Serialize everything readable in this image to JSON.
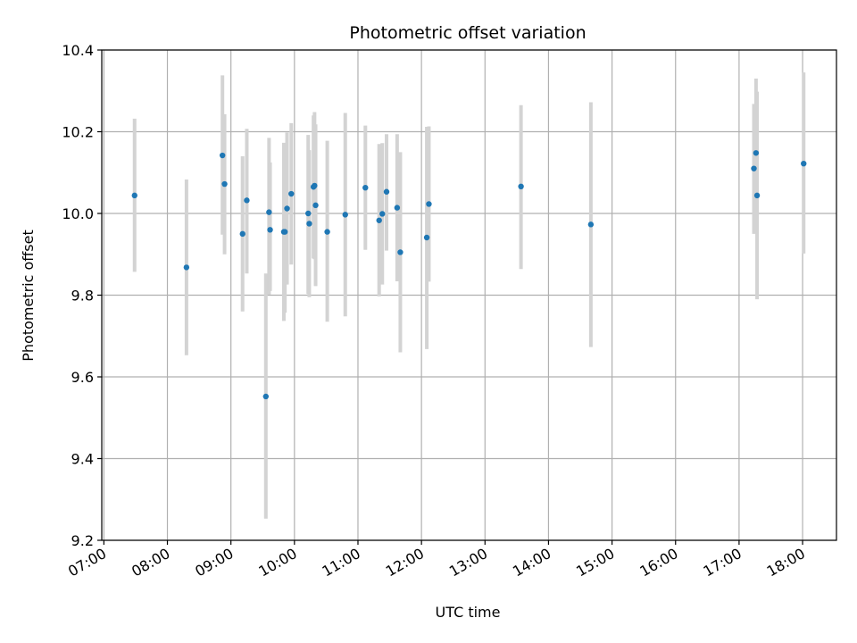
{
  "chart_data": {
    "type": "scatter",
    "title": "Photometric offset variation",
    "xlabel": "UTC time",
    "ylabel": "Photometric offset",
    "x_tick_labels": [
      "07:00",
      "08:00",
      "09:00",
      "10:00",
      "11:00",
      "12:00",
      "13:00",
      "14:00",
      "15:00",
      "16:00",
      "17:00",
      "18:00"
    ],
    "y_tick_labels": [
      "9.2",
      "9.4",
      "9.6",
      "9.8",
      "10.0",
      "10.2",
      "10.4"
    ],
    "x_ticks": [
      "07:00",
      "08:00",
      "09:00",
      "10:00",
      "11:00",
      "12:00",
      "13:00",
      "14:00",
      "15:00",
      "16:00",
      "17:00",
      "18:00"
    ],
    "y_ticks": [
      9.2,
      9.4,
      9.6,
      9.8,
      10.0,
      10.2,
      10.4
    ],
    "xlim": [
      "06:58",
      "18:32"
    ],
    "ylim": [
      9.2,
      10.4
    ],
    "grid": true,
    "colors": {
      "points": "#1f77b4",
      "errorbars": "#d3d3d3",
      "grid": "#b0b0b0"
    },
    "series": [
      {
        "points": [
          {
            "x": "07:29",
            "y": 10.044,
            "ylo": 9.857,
            "yhi": 10.232
          },
          {
            "x": "08:18",
            "y": 9.868,
            "ylo": 9.653,
            "yhi": 10.083
          },
          {
            "x": "08:52",
            "y": 10.142,
            "ylo": 9.948,
            "yhi": 10.338
          },
          {
            "x": "08:54",
            "y": 10.072,
            "ylo": 9.9,
            "yhi": 10.243
          },
          {
            "x": "09:11",
            "y": 9.95,
            "ylo": 9.76,
            "yhi": 10.14
          },
          {
            "x": "09:15",
            "y": 10.032,
            "ylo": 9.853,
            "yhi": 10.207
          },
          {
            "x": "09:33",
            "y": 9.552,
            "ylo": 9.253,
            "yhi": 9.853
          },
          {
            "x": "09:36",
            "y": 10.003,
            "ylo": 9.801,
            "yhi": 10.185
          },
          {
            "x": "09:37",
            "y": 9.96,
            "ylo": 9.81,
            "yhi": 10.125
          },
          {
            "x": "09:50",
            "y": 9.955,
            "ylo": 9.737,
            "yhi": 10.173
          },
          {
            "x": "09:51",
            "y": 9.955,
            "ylo": 9.757,
            "yhi": 10.153
          },
          {
            "x": "09:53",
            "y": 10.012,
            "ylo": 9.826,
            "yhi": 10.198
          },
          {
            "x": "09:57",
            "y": 10.048,
            "ylo": 9.875,
            "yhi": 10.221
          },
          {
            "x": "10:13",
            "y": 10.0,
            "ylo": 9.803,
            "yhi": 10.192
          },
          {
            "x": "10:14",
            "y": 9.975,
            "ylo": 9.795,
            "yhi": 10.155
          },
          {
            "x": "10:18",
            "y": 10.065,
            "ylo": 9.89,
            "yhi": 10.24
          },
          {
            "x": "10:19",
            "y": 10.068,
            "ylo": 9.888,
            "yhi": 10.248
          },
          {
            "x": "10:20",
            "y": 10.02,
            "ylo": 9.822,
            "yhi": 10.218
          },
          {
            "x": "10:31",
            "y": 9.955,
            "ylo": 9.735,
            "yhi": 10.178
          },
          {
            "x": "10:48",
            "y": 9.997,
            "ylo": 9.748,
            "yhi": 10.246
          },
          {
            "x": "11:07",
            "y": 10.063,
            "ylo": 9.911,
            "yhi": 10.215
          },
          {
            "x": "11:20",
            "y": 9.983,
            "ylo": 9.797,
            "yhi": 10.17
          },
          {
            "x": "11:23",
            "y": 9.999,
            "ylo": 9.826,
            "yhi": 10.172
          },
          {
            "x": "11:27",
            "y": 10.053,
            "ylo": 9.909,
            "yhi": 10.194
          },
          {
            "x": "11:37",
            "y": 10.014,
            "ylo": 9.834,
            "yhi": 10.194
          },
          {
            "x": "11:40",
            "y": 9.905,
            "ylo": 9.66,
            "yhi": 10.15
          },
          {
            "x": "12:05",
            "y": 9.941,
            "ylo": 9.668,
            "yhi": 10.212
          },
          {
            "x": "12:07",
            "y": 10.023,
            "ylo": 9.833,
            "yhi": 10.213
          },
          {
            "x": "13:34",
            "y": 10.066,
            "ylo": 9.864,
            "yhi": 10.265
          },
          {
            "x": "14:40",
            "y": 9.973,
            "ylo": 9.673,
            "yhi": 10.272
          },
          {
            "x": "17:14",
            "y": 10.11,
            "ylo": 9.95,
            "yhi": 10.268
          },
          {
            "x": "17:16",
            "y": 10.148,
            "ylo": 9.967,
            "yhi": 10.33
          },
          {
            "x": "17:17",
            "y": 10.044,
            "ylo": 9.79,
            "yhi": 10.298
          },
          {
            "x": "18:01",
            "y": 10.122,
            "ylo": 9.902,
            "yhi": 10.345
          }
        ]
      }
    ]
  }
}
